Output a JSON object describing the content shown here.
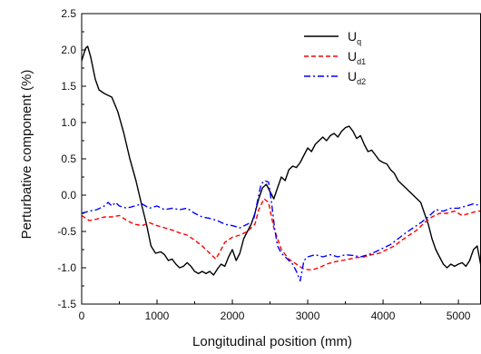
{
  "chart_data": {
    "type": "line",
    "title": "",
    "xlabel": "Longitudinal position (mm)",
    "ylabel": "Perturbative component (%)",
    "xlim": [
      0,
      5300
    ],
    "ylim": [
      -1.5,
      2.5
    ],
    "x_ticks": [
      0,
      1000,
      2000,
      3000,
      4000,
      5000
    ],
    "y_ticks": [
      -1.5,
      -1.0,
      -0.5,
      0.0,
      0.5,
      1.0,
      1.5,
      2.0,
      2.5
    ],
    "x_tick_labels": [
      "0",
      "1000",
      "2000",
      "3000",
      "4000",
      "5000"
    ],
    "y_tick_labels": [
      "-1.5",
      "-1.0",
      "-0.5",
      "0.0",
      "0.5",
      "1.0",
      "1.5",
      "2.0",
      "2.5"
    ],
    "grid": false,
    "legend_position": "top-right",
    "legend": [
      {
        "main": "U",
        "sub": "q"
      },
      {
        "main": "U",
        "sub": "d1"
      },
      {
        "main": "U",
        "sub": "d2"
      }
    ],
    "series": [
      {
        "name": "Uq",
        "color": "#000000",
        "dash": "solid",
        "points": [
          [
            0,
            1.85
          ],
          [
            50,
            2.02
          ],
          [
            80,
            2.05
          ],
          [
            120,
            1.9
          ],
          [
            180,
            1.6
          ],
          [
            230,
            1.45
          ],
          [
            300,
            1.4
          ],
          [
            400,
            1.35
          ],
          [
            480,
            1.15
          ],
          [
            560,
            0.85
          ],
          [
            640,
            0.5
          ],
          [
            720,
            0.2
          ],
          [
            800,
            -0.15
          ],
          [
            860,
            -0.4
          ],
          [
            920,
            -0.7
          ],
          [
            980,
            -0.8
          ],
          [
            1050,
            -0.78
          ],
          [
            1100,
            -0.82
          ],
          [
            1150,
            -0.9
          ],
          [
            1200,
            -0.88
          ],
          [
            1250,
            -0.95
          ],
          [
            1300,
            -1.0
          ],
          [
            1350,
            -0.98
          ],
          [
            1400,
            -0.93
          ],
          [
            1450,
            -0.98
          ],
          [
            1500,
            -1.05
          ],
          [
            1550,
            -1.08
          ],
          [
            1600,
            -1.05
          ],
          [
            1650,
            -1.08
          ],
          [
            1700,
            -1.05
          ],
          [
            1750,
            -1.1
          ],
          [
            1800,
            -1.02
          ],
          [
            1850,
            -0.95
          ],
          [
            1900,
            -0.98
          ],
          [
            1950,
            -0.85
          ],
          [
            2000,
            -0.75
          ],
          [
            2050,
            -0.9
          ],
          [
            2100,
            -0.8
          ],
          [
            2150,
            -0.6
          ],
          [
            2200,
            -0.5
          ],
          [
            2250,
            -0.4
          ],
          [
            2300,
            -0.25
          ],
          [
            2350,
            -0.05
          ],
          [
            2400,
            0.1
          ],
          [
            2450,
            0.15
          ],
          [
            2500,
            0.05
          ],
          [
            2550,
            -0.05
          ],
          [
            2600,
            0.1
          ],
          [
            2650,
            0.25
          ],
          [
            2700,
            0.2
          ],
          [
            2750,
            0.35
          ],
          [
            2800,
            0.4
          ],
          [
            2850,
            0.38
          ],
          [
            2900,
            0.45
          ],
          [
            2950,
            0.55
          ],
          [
            3000,
            0.65
          ],
          [
            3050,
            0.6
          ],
          [
            3100,
            0.7
          ],
          [
            3150,
            0.75
          ],
          [
            3200,
            0.8
          ],
          [
            3250,
            0.75
          ],
          [
            3300,
            0.82
          ],
          [
            3350,
            0.85
          ],
          [
            3400,
            0.8
          ],
          [
            3450,
            0.88
          ],
          [
            3500,
            0.93
          ],
          [
            3550,
            0.95
          ],
          [
            3600,
            0.88
          ],
          [
            3650,
            0.78
          ],
          [
            3700,
            0.82
          ],
          [
            3750,
            0.7
          ],
          [
            3800,
            0.6
          ],
          [
            3850,
            0.62
          ],
          [
            3900,
            0.55
          ],
          [
            3950,
            0.48
          ],
          [
            4000,
            0.45
          ],
          [
            4050,
            0.43
          ],
          [
            4100,
            0.35
          ],
          [
            4150,
            0.3
          ],
          [
            4200,
            0.2
          ],
          [
            4250,
            0.15
          ],
          [
            4300,
            0.1
          ],
          [
            4350,
            0.05
          ],
          [
            4400,
            0.0
          ],
          [
            4450,
            -0.05
          ],
          [
            4500,
            -0.1
          ],
          [
            4550,
            -0.25
          ],
          [
            4600,
            -0.4
          ],
          [
            4650,
            -0.6
          ],
          [
            4700,
            -0.75
          ],
          [
            4750,
            -0.85
          ],
          [
            4800,
            -0.95
          ],
          [
            4850,
            -1.0
          ],
          [
            4900,
            -0.95
          ],
          [
            4950,
            -0.98
          ],
          [
            5000,
            -0.95
          ],
          [
            5050,
            -0.93
          ],
          [
            5100,
            -0.98
          ],
          [
            5150,
            -0.9
          ],
          [
            5200,
            -0.75
          ],
          [
            5250,
            -0.7
          ],
          [
            5300,
            -0.98
          ]
        ]
      },
      {
        "name": "Ud1",
        "color": "#ff0000",
        "dash": "dashed",
        "points": [
          [
            0,
            -0.28
          ],
          [
            100,
            -0.35
          ],
          [
            200,
            -0.33
          ],
          [
            300,
            -0.3
          ],
          [
            400,
            -0.3
          ],
          [
            500,
            -0.28
          ],
          [
            600,
            -0.35
          ],
          [
            700,
            -0.4
          ],
          [
            800,
            -0.42
          ],
          [
            900,
            -0.38
          ],
          [
            1000,
            -0.42
          ],
          [
            1100,
            -0.45
          ],
          [
            1200,
            -0.48
          ],
          [
            1300,
            -0.52
          ],
          [
            1400,
            -0.55
          ],
          [
            1500,
            -0.62
          ],
          [
            1600,
            -0.7
          ],
          [
            1700,
            -0.8
          ],
          [
            1780,
            -0.88
          ],
          [
            1850,
            -0.75
          ],
          [
            1900,
            -0.65
          ],
          [
            2000,
            -0.58
          ],
          [
            2100,
            -0.55
          ],
          [
            2200,
            -0.5
          ],
          [
            2300,
            -0.4
          ],
          [
            2350,
            -0.2
          ],
          [
            2420,
            -0.05
          ],
          [
            2480,
            -0.1
          ],
          [
            2550,
            -0.45
          ],
          [
            2650,
            -0.75
          ],
          [
            2750,
            -0.88
          ],
          [
            2850,
            -0.95
          ],
          [
            2950,
            -1.02
          ],
          [
            3050,
            -1.03
          ],
          [
            3150,
            -1.0
          ],
          [
            3250,
            -0.95
          ],
          [
            3350,
            -0.92
          ],
          [
            3450,
            -0.9
          ],
          [
            3550,
            -0.88
          ],
          [
            3650,
            -0.86
          ],
          [
            3750,
            -0.85
          ],
          [
            3850,
            -0.82
          ],
          [
            3950,
            -0.8
          ],
          [
            4050,
            -0.75
          ],
          [
            4150,
            -0.7
          ],
          [
            4250,
            -0.62
          ],
          [
            4350,
            -0.55
          ],
          [
            4450,
            -0.48
          ],
          [
            4550,
            -0.38
          ],
          [
            4650,
            -0.3
          ],
          [
            4750,
            -0.25
          ],
          [
            4850,
            -0.25
          ],
          [
            4950,
            -0.22
          ],
          [
            5050,
            -0.28
          ],
          [
            5150,
            -0.25
          ],
          [
            5250,
            -0.22
          ],
          [
            5300,
            -0.22
          ]
        ]
      },
      {
        "name": "Ud2",
        "color": "#0000ff",
        "dash": "dashdot",
        "points": [
          [
            0,
            -0.25
          ],
          [
            100,
            -0.22
          ],
          [
            200,
            -0.2
          ],
          [
            300,
            -0.15
          ],
          [
            350,
            -0.1
          ],
          [
            400,
            -0.15
          ],
          [
            450,
            -0.1
          ],
          [
            500,
            -0.15
          ],
          [
            600,
            -0.18
          ],
          [
            700,
            -0.15
          ],
          [
            800,
            -0.12
          ],
          [
            900,
            -0.18
          ],
          [
            1000,
            -0.15
          ],
          [
            1100,
            -0.2
          ],
          [
            1200,
            -0.18
          ],
          [
            1300,
            -0.2
          ],
          [
            1400,
            -0.18
          ],
          [
            1500,
            -0.25
          ],
          [
            1600,
            -0.3
          ],
          [
            1700,
            -0.32
          ],
          [
            1800,
            -0.35
          ],
          [
            1900,
            -0.4
          ],
          [
            2000,
            -0.42
          ],
          [
            2100,
            -0.45
          ],
          [
            2200,
            -0.4
          ],
          [
            2280,
            -0.35
          ],
          [
            2330,
            -0.1
          ],
          [
            2380,
            0.15
          ],
          [
            2430,
            0.2
          ],
          [
            2480,
            0.18
          ],
          [
            2520,
            -0.1
          ],
          [
            2560,
            -0.45
          ],
          [
            2600,
            -0.7
          ],
          [
            2650,
            -0.8
          ],
          [
            2700,
            -0.85
          ],
          [
            2750,
            -0.9
          ],
          [
            2800,
            -0.95
          ],
          [
            2850,
            -1.05
          ],
          [
            2900,
            -1.18
          ],
          [
            2950,
            -0.9
          ],
          [
            3000,
            -0.85
          ],
          [
            3100,
            -0.82
          ],
          [
            3200,
            -0.85
          ],
          [
            3300,
            -0.82
          ],
          [
            3400,
            -0.85
          ],
          [
            3500,
            -0.82
          ],
          [
            3600,
            -0.83
          ],
          [
            3700,
            -0.85
          ],
          [
            3800,
            -0.82
          ],
          [
            3900,
            -0.78
          ],
          [
            4000,
            -0.73
          ],
          [
            4100,
            -0.68
          ],
          [
            4200,
            -0.6
          ],
          [
            4300,
            -0.52
          ],
          [
            4400,
            -0.45
          ],
          [
            4500,
            -0.38
          ],
          [
            4600,
            -0.3
          ],
          [
            4700,
            -0.2
          ],
          [
            4800,
            -0.22
          ],
          [
            4900,
            -0.18
          ],
          [
            5000,
            -0.18
          ],
          [
            5100,
            -0.15
          ],
          [
            5200,
            -0.12
          ],
          [
            5300,
            -0.15
          ]
        ]
      }
    ]
  }
}
